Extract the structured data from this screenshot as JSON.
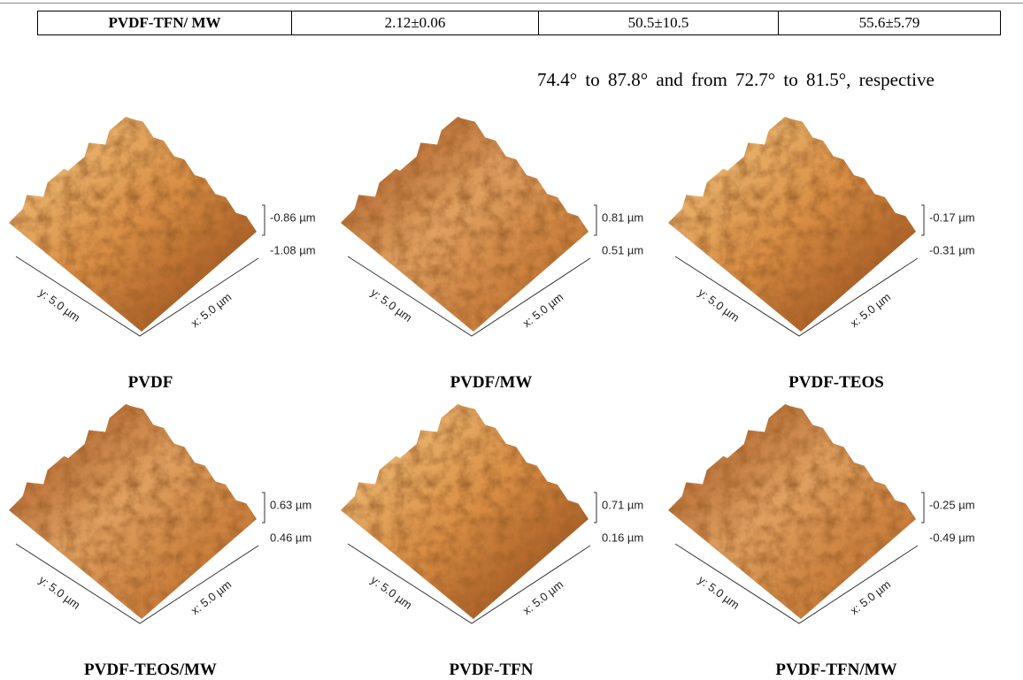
{
  "table": {
    "rows": [
      [
        "PVDF-TFN/ MW",
        "2.12±0.06",
        "50.5±10.5",
        "55.6±5.79"
      ]
    ]
  },
  "text": "74.4° to 87.8° and from 72.7° to 81.5°, respective",
  "panels": [
    {
      "caption": "PVDF",
      "z_max": "-0.86 µm",
      "z_min": "-1.08 µm",
      "y_axis": "y: 5.0 µm",
      "x_axis": "x: 5.0 µm"
    },
    {
      "caption": "PVDF/MW",
      "z_max": "0.81 µm",
      "z_min": "0.51 µm",
      "y_axis": "y: 5.0 µm",
      "x_axis": "x: 5.0 µm"
    },
    {
      "caption": "PVDF-TEOS",
      "z_max": "-0.17 µm",
      "z_min": "-0.31 µm",
      "y_axis": "y: 5.0 µm",
      "x_axis": "x: 5.0 µm"
    },
    {
      "caption": "PVDF-TEOS/MW",
      "z_max": "0.63 µm",
      "z_min": "0.46 µm",
      "y_axis": "y: 5.0 µm",
      "x_axis": "x: 5.0 µm"
    },
    {
      "caption": "PVDF-TFN",
      "z_max": "0.71 µm",
      "z_min": "0.16 µm",
      "y_axis": "y: 5.0 µm",
      "x_axis": "x: 5.0 µm"
    },
    {
      "caption": "PVDF-TFN/MW",
      "z_max": "-0.25 µm",
      "z_min": "-0.49 µm",
      "y_axis": "y: 5.0 µm",
      "x_axis": "x: 5.0 µm"
    }
  ]
}
